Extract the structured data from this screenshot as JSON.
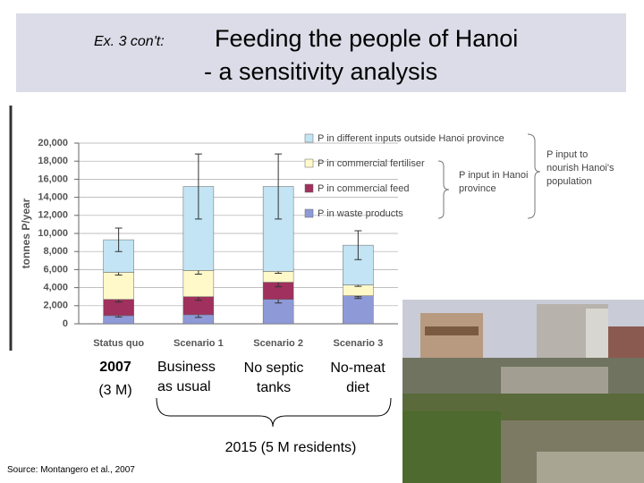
{
  "header": {
    "prefix": "Ex. 3 con't:",
    "title_line1": "Feeding the people of Hanoi",
    "title_line2": "- a sensitivity analysis"
  },
  "chart_data": {
    "type": "stacked_bar",
    "ylabel": "tonnes P/year",
    "categories": [
      "Status quo",
      "Scenario 1",
      "Scenario 2",
      "Scenario 3"
    ],
    "series": [
      {
        "name": "P in waste products",
        "color": "#8e9ad8",
        "values": [
          900,
          1000,
          2700,
          3100
        ],
        "errors": [
          150,
          300,
          400,
          300
        ]
      },
      {
        "name": "P in commercial feed",
        "color": "#a0305e",
        "values": [
          1800,
          2000,
          1900,
          0
        ],
        "errors": [
          300,
          400,
          500,
          100
        ]
      },
      {
        "name": "P in commercial fertiliser",
        "color": "#fff9c9",
        "values": [
          3000,
          2900,
          1200,
          1200
        ],
        "errors": [
          300,
          400,
          200,
          150
        ]
      },
      {
        "name": "P in different inputs outside Hanoi province",
        "color": "#c2e4f4",
        "values": [
          3600,
          9300,
          9400,
          4400
        ],
        "errors": [
          1300,
          3600,
          3600,
          1600
        ]
      }
    ],
    "ylim": [
      0,
      20000
    ],
    "yticks": [
      0,
      {
        "value": 2000,
        "label": "2,000"
      },
      {
        "value": 4000,
        "label": "4,000"
      },
      {
        "value": 6000,
        "label": "6,000"
      },
      {
        "value": 8000,
        "label": "8,000"
      },
      {
        "value": 10000,
        "label": "10,000"
      },
      {
        "value": 12000,
        "label": "12,000"
      },
      {
        "value": 14000,
        "label": "14,000"
      },
      {
        "value": 16000,
        "label": "16,000"
      },
      {
        "value": 18000,
        "label": "18,000"
      },
      {
        "value": 20000,
        "label": "20,000"
      }
    ],
    "grid": true,
    "brace_labels": [
      "P input in Hanoi province",
      "P input to nourish Hanoi's population"
    ]
  },
  "scenario_notes": {
    "year_2007": "2007",
    "pop_2007": "(3 M)",
    "s1": "Business as usual",
    "s2": "No septic tanks",
    "s3": "No-meat diet",
    "year_2015": "2015   (5 M residents)"
  },
  "source": "Source:  Montangero et al.,  2007"
}
